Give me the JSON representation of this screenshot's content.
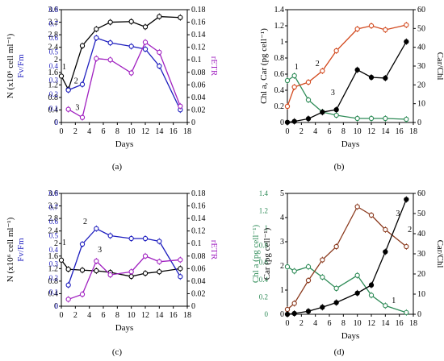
{
  "chart_data": [
    {
      "panel": "(a)",
      "type": "line",
      "xlabel": "Days",
      "x_ticks": [
        0,
        2,
        4,
        6,
        8,
        10,
        12,
        14,
        16,
        18
      ],
      "xlim": [
        0,
        18
      ],
      "left_axes": [
        {
          "label": "N (x10⁶ cell ml⁻¹)",
          "color": "#000000",
          "ylim": [
            0,
            3.6
          ],
          "ticks": [
            "0",
            "0.4",
            "0.8",
            "1.2",
            "1.6",
            "2",
            "2.4",
            "2.8",
            "3.2",
            "3.6"
          ]
        },
        {
          "label": "Fv/Fm",
          "color": "#1f1fbf",
          "ylim": [
            0,
            0.8
          ],
          "ticks": [
            "0",
            "0.1",
            "0.2",
            "0.3",
            "0.4",
            "0.5",
            "0.6",
            "0.7",
            "0.8"
          ]
        }
      ],
      "right_axis": {
        "label": "rETR",
        "color": "#a020c0",
        "ylim": [
          0,
          0.18
        ],
        "ticks": [
          "0",
          "0.02",
          "0.04",
          "0.06",
          "0.08",
          "0.1",
          "0.12",
          "0.14",
          "0.16",
          "0.18"
        ]
      },
      "series": [
        {
          "axis": "left0",
          "color": "#000000",
          "marker": "circle-open",
          "x": [
            0,
            1,
            3,
            5,
            7,
            10,
            12,
            14,
            17
          ],
          "y": [
            1.48,
            1.05,
            2.45,
            2.98,
            3.2,
            3.22,
            3.05,
            3.38,
            3.35
          ]
        },
        {
          "axis": "left1",
          "color": "#1f1fbf",
          "marker": "circle-open",
          "x": [
            1,
            3,
            5,
            7,
            10,
            12,
            14,
            17
          ],
          "y": [
            0.23,
            0.27,
            0.6,
            0.565,
            0.54,
            0.52,
            0.4,
            0.09
          ]
        },
        {
          "axis": "right",
          "color": "#a020c0",
          "marker": "circle-open",
          "x": [
            1,
            3,
            5,
            7,
            10,
            12,
            14,
            17
          ],
          "y": [
            0.021,
            0.008,
            0.102,
            0.1,
            0.079,
            0.128,
            0.112,
            0.026
          ]
        }
      ],
      "annotations": [
        {
          "text": "1",
          "x": 0.4,
          "y": 1.7
        },
        {
          "text": "2",
          "x": 2.1,
          "y": 1.25
        },
        {
          "text": "3",
          "x": 2.3,
          "y": 0.4
        }
      ]
    },
    {
      "panel": "(b)",
      "type": "line",
      "xlabel": "Days",
      "x_ticks": [
        0,
        2,
        4,
        6,
        8,
        10,
        12,
        14,
        16,
        18
      ],
      "xlim": [
        0,
        18
      ],
      "left_axes": [
        {
          "label": "Chl a, Car (pg cell⁻¹)",
          "ylim": [
            0,
            1.4
          ],
          "ticks": [
            "0",
            "0.2",
            "0.4",
            "0.6",
            "0.8",
            "1",
            "1.2",
            "1.4"
          ]
        }
      ],
      "right_axis": {
        "label": "Car/Chl",
        "ylim": [
          0,
          60
        ],
        "ticks": [
          "0",
          "10",
          "20",
          "30",
          "40",
          "50",
          "60"
        ]
      },
      "series": [
        {
          "axis": "left",
          "color": "#2e8b57",
          "marker": "circle-open",
          "x": [
            0,
            1,
            3,
            5,
            7,
            10,
            12,
            14,
            17
          ],
          "y": [
            0.52,
            0.58,
            0.28,
            0.13,
            0.09,
            0.05,
            0.05,
            0.05,
            0.04
          ]
        },
        {
          "axis": "left",
          "color": "#d2491e",
          "marker": "circle-open",
          "x": [
            0,
            1,
            3,
            5,
            7,
            10,
            12,
            14,
            17
          ],
          "y": [
            0.2,
            0.44,
            0.5,
            0.64,
            0.89,
            1.16,
            1.2,
            1.15,
            1.21
          ]
        },
        {
          "axis": "right",
          "color": "#000000",
          "marker": "circle-filled",
          "x": [
            0,
            1,
            3,
            5,
            7,
            10,
            12,
            14,
            17
          ],
          "y": [
            0.1,
            0.6,
            2,
            5.5,
            6.8,
            28,
            24,
            23.6,
            43
          ]
        }
      ],
      "annotations": [
        {
          "text": "1",
          "x": 1.3,
          "y": 0.66
        },
        {
          "text": "2",
          "x": 4.3,
          "y": 0.7
        },
        {
          "text": "3",
          "x": 6.5,
          "y": 0.34
        }
      ]
    },
    {
      "panel": "(c)",
      "type": "line",
      "xlabel": "Days",
      "x_ticks": [
        0,
        2,
        4,
        6,
        8,
        10,
        12,
        14,
        16,
        18
      ],
      "xlim": [
        0,
        18
      ],
      "left_axes": [
        {
          "label": "N (x10⁶ cell ml⁻¹)",
          "color": "#000000",
          "ylim": [
            0,
            3.6
          ],
          "ticks": [
            "0",
            "0.4",
            "0.8",
            "1.2",
            "1.6",
            "2",
            "2.4",
            "2.8",
            "3.2",
            "3.6"
          ]
        },
        {
          "label": "Fv/Fm",
          "color": "#1f1fbf",
          "ylim": [
            0,
            0.8
          ],
          "ticks": [
            "0",
            "0.1",
            "0.2",
            "0.3",
            "0.4",
            "0.5",
            "0.6",
            "0.7",
            "0.8"
          ]
        }
      ],
      "right_axis": {
        "label": "rETR",
        "color": "#a020c0",
        "ylim": [
          0,
          0.18
        ],
        "ticks": [
          "0",
          "0.02",
          "0.04",
          "0.06",
          "0.08",
          "0.1",
          "0.12",
          "0.14",
          "0.16",
          "0.18"
        ]
      },
      "series": [
        {
          "axis": "left0",
          "color": "#000000",
          "marker": "circle-open",
          "x": [
            0,
            1,
            3,
            5,
            7,
            10,
            12,
            14,
            17
          ],
          "y": [
            1.47,
            1.18,
            1.15,
            1.13,
            1.08,
            0.95,
            1.05,
            1.1,
            1.2
          ]
        },
        {
          "axis": "left1",
          "color": "#1f1fbf",
          "marker": "circle-open",
          "x": [
            1,
            3,
            5,
            7,
            10,
            12,
            14,
            17
          ],
          "y": [
            0.15,
            0.44,
            0.55,
            0.5,
            0.48,
            0.48,
            0.46,
            0.21
          ]
        },
        {
          "axis": "right",
          "color": "#a020c0",
          "marker": "circle-open",
          "x": [
            1,
            3,
            5,
            7,
            10,
            12,
            14,
            17
          ],
          "y": [
            0.011,
            0.019,
            0.072,
            0.05,
            0.055,
            0.08,
            0.071,
            0.074
          ]
        }
      ],
      "annotations": [
        {
          "text": "1",
          "x": 0.4,
          "y": 1.95
        },
        {
          "text": "2",
          "x": 3.4,
          "y": 2.62
        },
        {
          "text": "3",
          "x": 5.5,
          "y": 1.72
        }
      ]
    },
    {
      "panel": "(d)",
      "type": "line",
      "xlabel": "Days",
      "x_ticks": [
        0,
        2,
        4,
        6,
        8,
        10,
        12,
        14,
        16,
        18
      ],
      "xlim": [
        0,
        18
      ],
      "left_axes": [
        {
          "label": "Chl a (pg cell⁻¹)",
          "color": "#2e8b57",
          "ylim": [
            0,
            1.4
          ],
          "ticks": [
            "0",
            "0.2",
            "0.4",
            "0.6",
            "0.8",
            "1",
            "1.2",
            "1.4"
          ]
        },
        {
          "label": "Car (pg cell⁻¹)",
          "color": "#000000",
          "ylim": [
            0,
            5
          ],
          "ticks": [
            "0",
            "1",
            "2",
            "3",
            "4",
            "5"
          ]
        }
      ],
      "right_axis": {
        "label": "Car/Chl",
        "ylim": [
          0,
          60
        ],
        "ticks": [
          "0",
          "10",
          "20",
          "30",
          "40",
          "50",
          "60"
        ]
      },
      "series": [
        {
          "axis": "left0",
          "color": "#2e8b57",
          "marker": "circle-open",
          "x": [
            0,
            1,
            3,
            5,
            7,
            10,
            12,
            14,
            17
          ],
          "y": [
            0.55,
            0.5,
            0.55,
            0.43,
            0.3,
            0.45,
            0.22,
            0.1,
            0.02
          ]
        },
        {
          "axis": "left1",
          "color": "#8b3a1e",
          "marker": "circle-open",
          "x": [
            0,
            1,
            3,
            5,
            7,
            10,
            12,
            14,
            17
          ],
          "y": [
            0.2,
            0.45,
            1.4,
            2.25,
            2.8,
            4.45,
            4.1,
            3.5,
            2.8
          ]
        },
        {
          "axis": "right",
          "color": "#000000",
          "marker": "circle-filled",
          "x": [
            0,
            1,
            3,
            5,
            7,
            10,
            12,
            14,
            17
          ],
          "y": [
            0,
            0.4,
            1.5,
            3.5,
            5.8,
            10.5,
            14.5,
            31,
            57
          ]
        }
      ],
      "annotations": [
        {
          "text": "3",
          "x": 15.8,
          "y": 1.14
        },
        {
          "text": "2",
          "x": 17.5,
          "y": 0.95
        },
        {
          "text": "1",
          "x": 15.2,
          "y": 0.13
        }
      ]
    }
  ]
}
